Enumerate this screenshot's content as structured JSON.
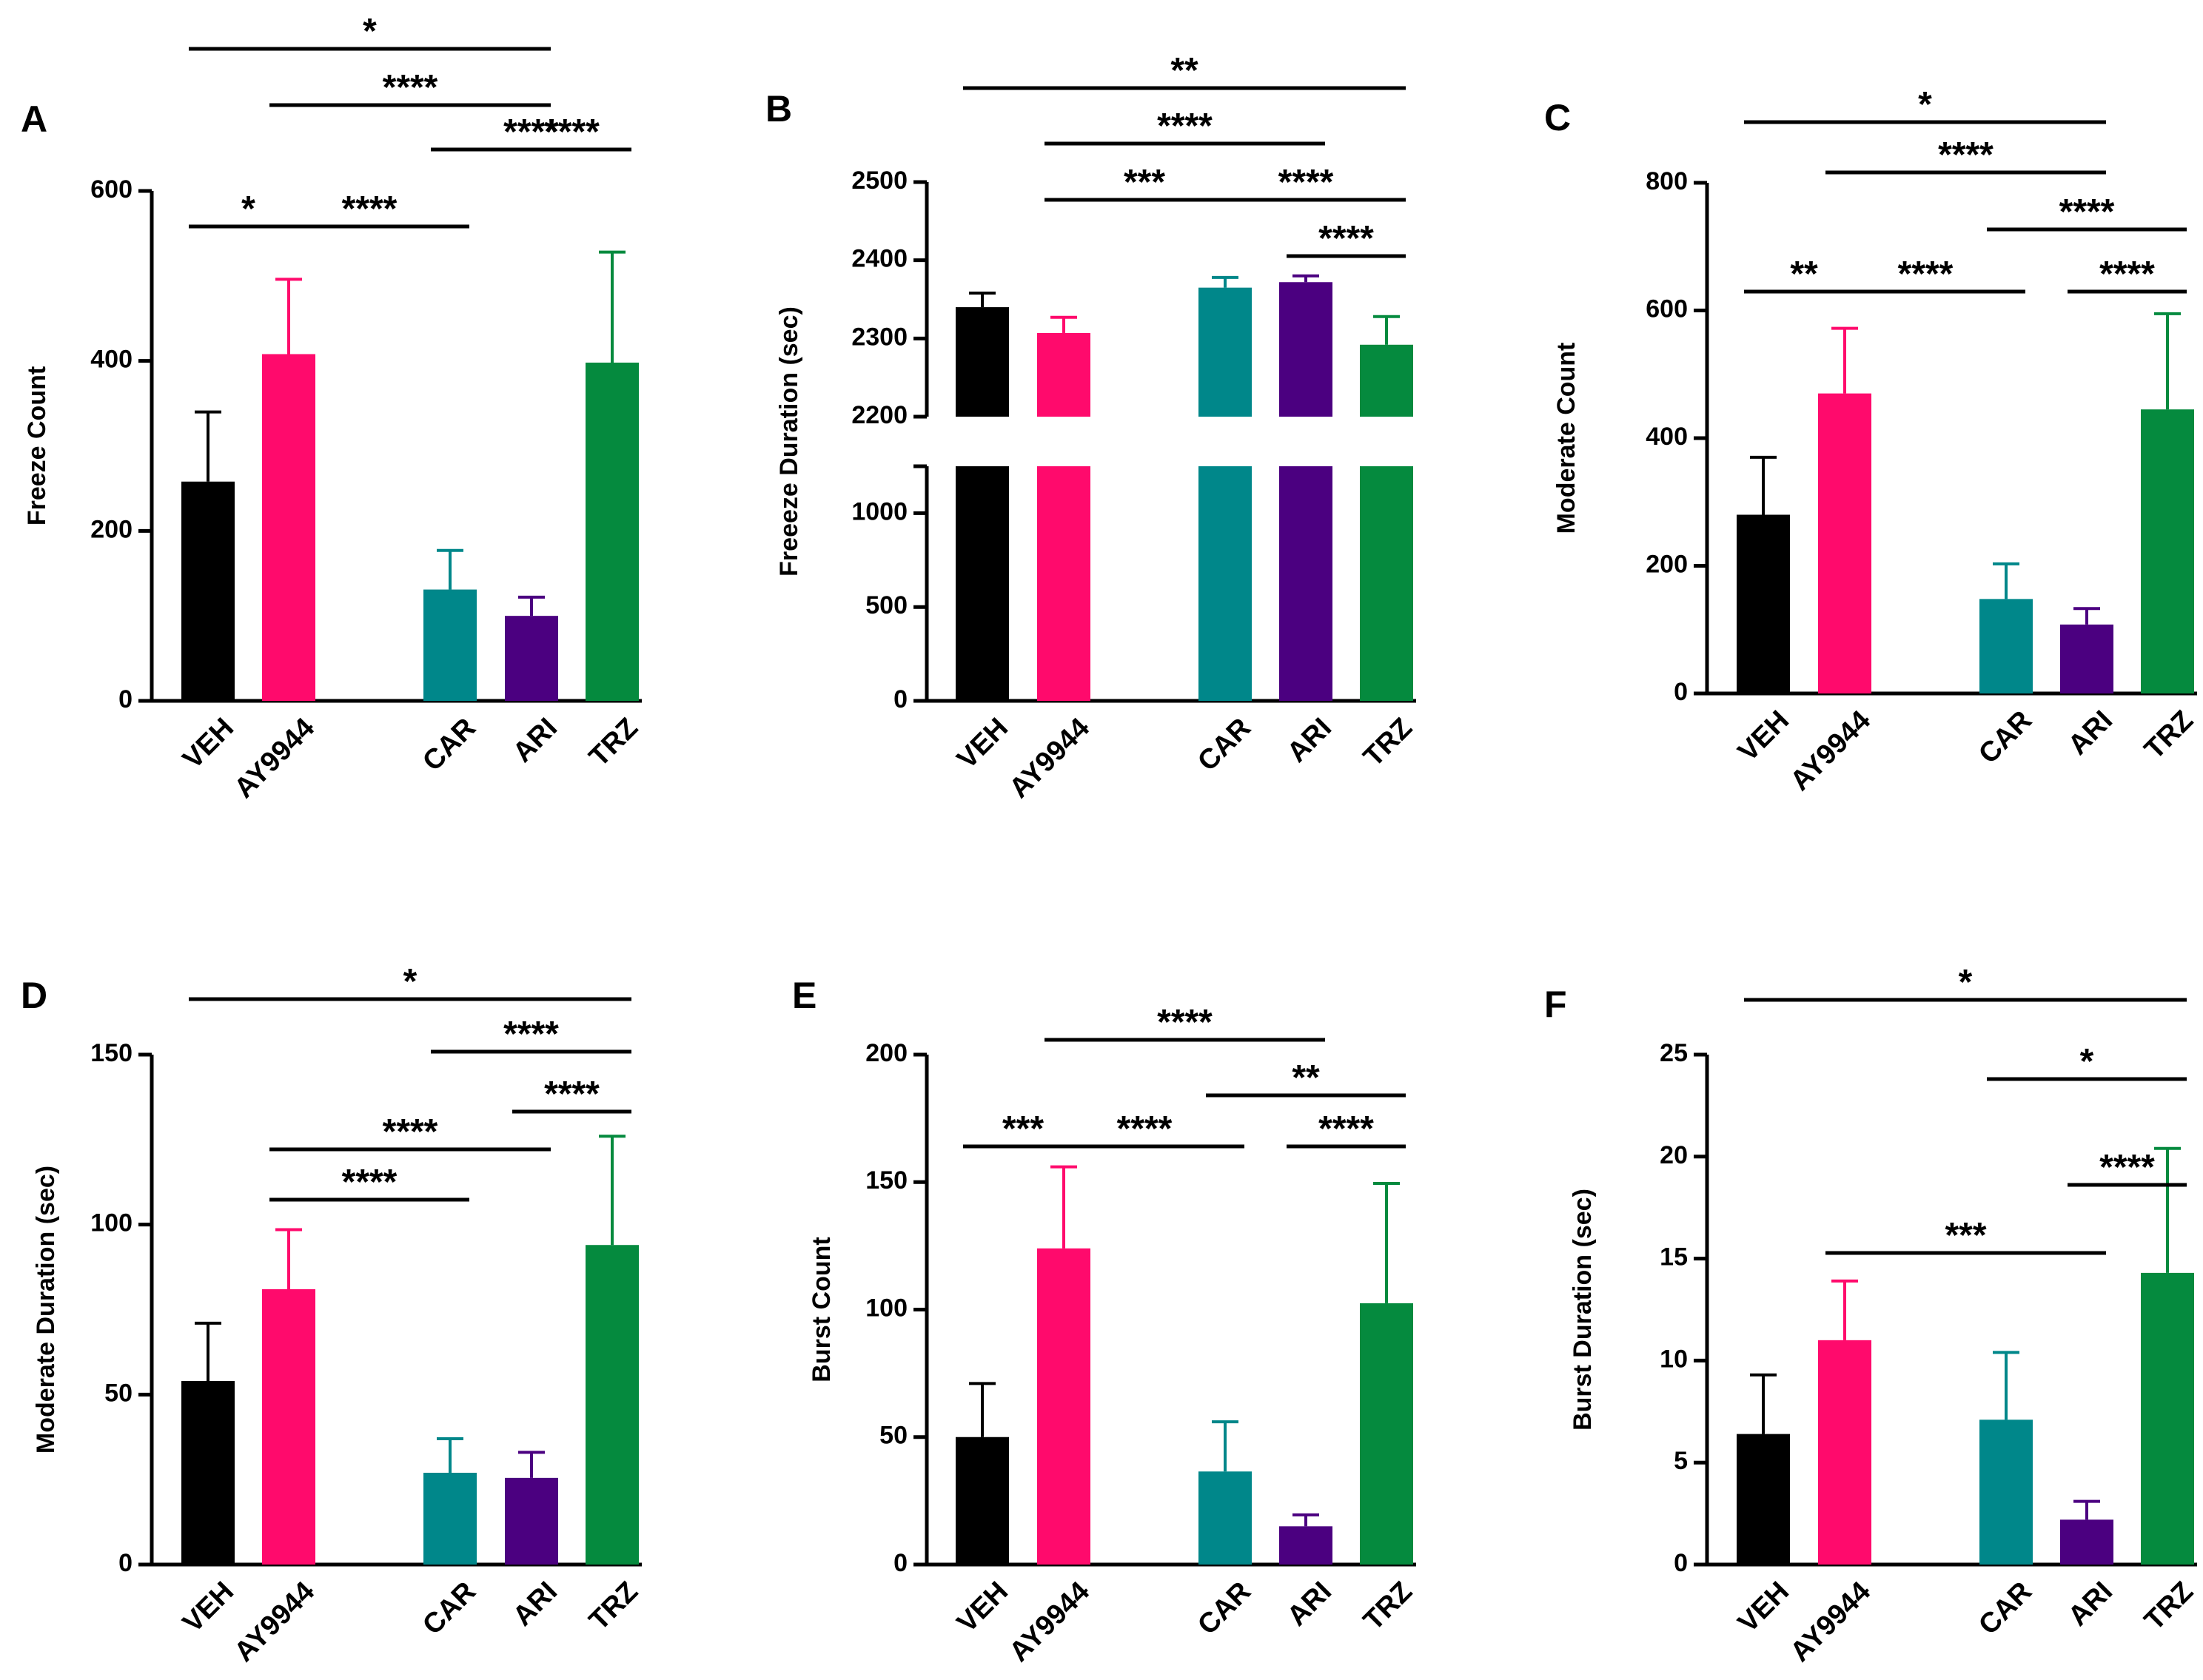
{
  "chart_data": [
    {
      "panel": "A",
      "type": "bar",
      "ylabel": "Freeze Count",
      "ylim": [
        0,
        600
      ],
      "yticks": [
        0,
        200,
        400,
        600
      ],
      "categories": [
        "VEH",
        "AY9944",
        "CAR",
        "ARI",
        "TRZ"
      ],
      "values": [
        258,
        408,
        131,
        100,
        398
      ],
      "errors": [
        82,
        88,
        46,
        22,
        130
      ],
      "comparisons": [
        {
          "from": "VEH",
          "to": "AY9944",
          "label": "*"
        },
        {
          "from": "AY9944",
          "to": "CAR",
          "label": "****"
        },
        {
          "from": "ARI",
          "to": "TRZ",
          "label": "****"
        },
        {
          "from": "CAR",
          "to": "TRZ",
          "label": "****"
        },
        {
          "from": "AY9944",
          "to": "ARI",
          "label": "****"
        },
        {
          "from": "VEH",
          "to": "ARI",
          "label": "*"
        }
      ]
    },
    {
      "panel": "B",
      "type": "bar",
      "ylabel": "Freeeze Duration (sec)",
      "broken_axis": true,
      "ylim_lower": [
        0,
        1250
      ],
      "ylim_upper": [
        2200,
        2500
      ],
      "yticks_lower": [
        0,
        500,
        1000
      ],
      "yticks_upper": [
        2200,
        2300,
        2400,
        2500
      ],
      "categories": [
        "VEH",
        "AY9944",
        "CAR",
        "ARI",
        "TRZ"
      ],
      "values": [
        2340,
        2307,
        2365,
        2372,
        2292
      ],
      "errors": [
        18,
        20,
        13,
        8,
        36
      ],
      "comparisons": [
        {
          "from": "ARI",
          "to": "TRZ",
          "label": "****"
        },
        {
          "from": "CAR",
          "to": "TRZ",
          "label": "****"
        },
        {
          "from": "AY9944",
          "to": "CAR",
          "label": "***"
        },
        {
          "from": "AY9944",
          "to": "ARI",
          "label": "****"
        },
        {
          "from": "VEH",
          "to": "TRZ",
          "label": "**"
        }
      ]
    },
    {
      "panel": "C",
      "type": "bar",
      "ylabel": "Moderate Count",
      "ylim": [
        0,
        800
      ],
      "yticks": [
        0,
        200,
        400,
        600,
        800
      ],
      "categories": [
        "VEH",
        "AY9944",
        "CAR",
        "ARI",
        "TRZ"
      ],
      "values": [
        280,
        470,
        148,
        108,
        445
      ],
      "errors": [
        90,
        102,
        55,
        25,
        150
      ],
      "comparisons": [
        {
          "from": "VEH",
          "to": "AY9944",
          "label": "**"
        },
        {
          "from": "AY9944",
          "to": "CAR",
          "label": "****"
        },
        {
          "from": "ARI",
          "to": "TRZ",
          "label": "****"
        },
        {
          "from": "CAR",
          "to": "TRZ",
          "label": "****"
        },
        {
          "from": "AY9944",
          "to": "ARI",
          "label": "****"
        },
        {
          "from": "VEH",
          "to": "ARI",
          "label": "*"
        }
      ]
    },
    {
      "panel": "D",
      "type": "bar",
      "ylabel": "Moderate Duration (sec)",
      "ylim": [
        0,
        150
      ],
      "yticks": [
        0,
        50,
        100,
        150
      ],
      "categories": [
        "VEH",
        "AY9944",
        "CAR",
        "ARI",
        "TRZ"
      ],
      "values": [
        54,
        81,
        27,
        25.5,
        94
      ],
      "errors": [
        17,
        17.5,
        10,
        7.5,
        32
      ],
      "comparisons": [
        {
          "from": "AY9944",
          "to": "CAR",
          "label": "****"
        },
        {
          "from": "AY9944",
          "to": "ARI",
          "label": "****"
        },
        {
          "from": "ARI",
          "to": "TRZ",
          "label": "****"
        },
        {
          "from": "CAR",
          "to": "TRZ",
          "label": "****"
        },
        {
          "from": "VEH",
          "to": "TRZ",
          "label": "*"
        }
      ]
    },
    {
      "panel": "E",
      "type": "bar",
      "ylabel": "Burst Count",
      "ylim": [
        0,
        200
      ],
      "yticks": [
        0,
        50,
        100,
        150,
        200
      ],
      "categories": [
        "VEH",
        "AY9944",
        "CAR",
        "ARI",
        "TRZ"
      ],
      "values": [
        50,
        124,
        36.5,
        15,
        102.5
      ],
      "errors": [
        21,
        32,
        19.5,
        4.5,
        47
      ],
      "comparisons": [
        {
          "from": "VEH",
          "to": "AY9944",
          "label": "***"
        },
        {
          "from": "AY9944",
          "to": "CAR",
          "label": "****"
        },
        {
          "from": "ARI",
          "to": "TRZ",
          "label": "****"
        },
        {
          "from": "CAR",
          "to": "TRZ",
          "label": "**"
        },
        {
          "from": "AY9944",
          "to": "ARI",
          "label": "****"
        }
      ]
    },
    {
      "panel": "F",
      "type": "bar",
      "ylabel": "Burst Duration (sec)",
      "ylim": [
        0,
        25
      ],
      "yticks": [
        0,
        5,
        10,
        15,
        20,
        25
      ],
      "categories": [
        "VEH",
        "AY9944",
        "CAR",
        "ARI",
        "TRZ"
      ],
      "values": [
        6.4,
        11,
        7.1,
        2.2,
        14.3
      ],
      "errors": [
        2.9,
        2.9,
        3.3,
        0.9,
        6.1
      ],
      "comparisons": [
        {
          "from": "AY9944",
          "to": "ARI",
          "label": "***"
        },
        {
          "from": "ARI",
          "to": "TRZ",
          "label": "****"
        },
        {
          "from": "CAR",
          "to": "TRZ",
          "label": "*"
        },
        {
          "from": "VEH",
          "to": "TRZ",
          "label": "*"
        }
      ]
    }
  ],
  "colors": {
    "VEH": "#000000",
    "AY9944": "#ff0a6c",
    "CAR": "#00878a",
    "ARI": "#4b0080",
    "TRZ": "#058a3e"
  }
}
